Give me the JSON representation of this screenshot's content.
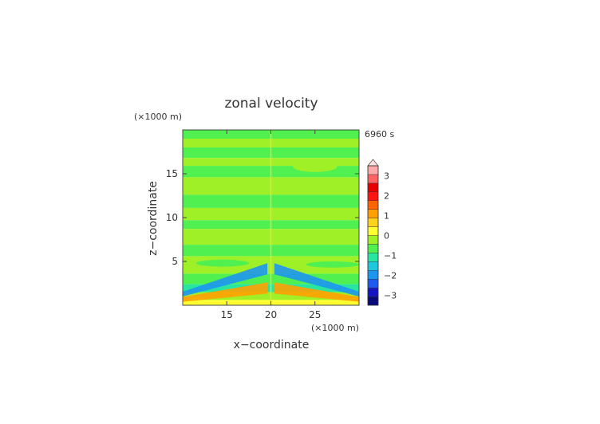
{
  "chart_data": {
    "type": "heatmap",
    "title": "zonal velocity",
    "time_label": "6960 s",
    "xlabel": "x−coordinate",
    "ylabel": "z−coordinate",
    "x_unit": "(×1000 m)",
    "y_unit": "(×1000 m)",
    "xlim": [
      10,
      30
    ],
    "ylim": [
      0,
      20
    ],
    "x_ticks": [
      {
        "value": 15,
        "label": "15"
      },
      {
        "value": 20,
        "label": "20"
      },
      {
        "value": 25,
        "label": "25"
      }
    ],
    "y_ticks": [
      {
        "value": 5,
        "label": "5"
      },
      {
        "value": 10,
        "label": "10"
      },
      {
        "value": 15,
        "label": "15"
      }
    ],
    "colorbar": {
      "min": -3.5,
      "max": 3.5,
      "step": 0.5,
      "tick_labels": [
        {
          "value": 3,
          "label": "3"
        },
        {
          "value": 2,
          "label": "2"
        },
        {
          "value": 1,
          "label": "1"
        },
        {
          "value": 0,
          "label": "0"
        },
        {
          "value": -1,
          "label": "−1"
        },
        {
          "value": -2,
          "label": "−2"
        },
        {
          "value": -3,
          "label": "−3"
        }
      ],
      "colors": [
        "#0a0a7a",
        "#1414c0",
        "#1e5af0",
        "#1e96f0",
        "#1ec8dc",
        "#28e6a0",
        "#50f050",
        "#a0f028",
        "#ffff32",
        "#ffd21e",
        "#ffa000",
        "#ff6400",
        "#ff1414",
        "#e60000",
        "#ff6464",
        "#ffaaaa"
      ],
      "extend_top": true
    },
    "field_bands": [
      {
        "z": [
          19.0,
          20.0
        ],
        "value": -0.2
      },
      {
        "z": [
          18.0,
          19.0
        ],
        "value": 0.2
      },
      {
        "z": [
          16.8,
          18.0
        ],
        "value": -0.2
      },
      {
        "z": [
          15.9,
          16.8
        ],
        "value": 0.2
      },
      {
        "z": [
          14.6,
          15.9
        ],
        "value": -0.2
      },
      {
        "z": [
          12.6,
          14.6
        ],
        "value": 0.2
      },
      {
        "z": [
          11.1,
          12.6
        ],
        "value": -0.2
      },
      {
        "z": [
          9.7,
          11.1
        ],
        "value": 0.2
      },
      {
        "z": [
          8.7,
          9.7
        ],
        "value": -0.2
      },
      {
        "z": [
          6.9,
          8.7
        ],
        "value": 0.2
      },
      {
        "z": [
          5.6,
          6.9
        ],
        "value": -0.2
      },
      {
        "z": [
          3.6,
          5.6
        ],
        "value": 0.2
      },
      {
        "z": [
          2.4,
          3.6
        ],
        "value": -0.2
      },
      {
        "z": [
          1.5,
          2.4
        ],
        "value": -0.6
      },
      {
        "z": [
          0.6,
          1.5
        ],
        "value": 0.4
      },
      {
        "z": [
          0.0,
          0.6
        ],
        "value": 0.8
      }
    ],
    "field_features": [
      {
        "x": [
          22.5,
          27.5
        ],
        "z": [
          15.2,
          16.4
        ],
        "value": 0.2
      },
      {
        "x": [
          11.5,
          17.5
        ],
        "z": [
          4.4,
          5.2
        ],
        "value": -0.2
      },
      {
        "x": [
          24.0,
          30.0
        ],
        "z": [
          4.3,
          5.0
        ],
        "value": -0.2
      },
      {
        "x": [
          10.0,
          19.6
        ],
        "z": [
          1.0,
          4.8
        ],
        "value": -1.6
      },
      {
        "x": [
          20.4,
          30.0
        ],
        "z": [
          1.0,
          4.8
        ],
        "value": -1.6
      },
      {
        "x": [
          10.0,
          19.6
        ],
        "z": [
          0.4,
          2.6
        ],
        "value": 1.6
      },
      {
        "x": [
          20.4,
          30.0
        ],
        "z": [
          0.4,
          2.6
        ],
        "value": 1.6
      }
    ]
  }
}
